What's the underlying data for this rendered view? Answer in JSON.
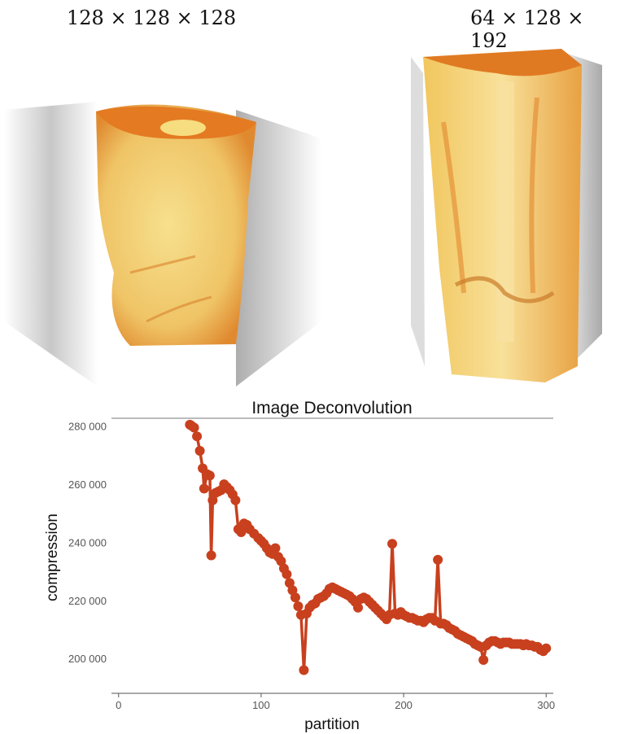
{
  "volumes": [
    {
      "dims": "128 × 128 × 128"
    },
    {
      "dims": "64 × 128 × 192"
    }
  ],
  "colors": {
    "series": "#c8401e",
    "volume_light": "#f5d77a",
    "volume_dark": "#e07018"
  },
  "chart_data": {
    "type": "scatter",
    "title": "Image Deconvolution",
    "xlabel": "partition",
    "ylabel": "compression",
    "xlim": [
      -5,
      305
    ],
    "ylim": [
      188000,
      283000
    ],
    "xticks": [
      0,
      100,
      200,
      300
    ],
    "yticks": [
      200000,
      220000,
      240000,
      260000,
      280000
    ],
    "ytick_labels": [
      "200 000",
      "220 000",
      "240 000",
      "260 000",
      "280 000"
    ],
    "grid": false,
    "series": [
      {
        "connected": true,
        "x": [
          50,
          51,
          53,
          55,
          57,
          59,
          60,
          62,
          64,
          65,
          66,
          68,
          70,
          72,
          74,
          76,
          78,
          80,
          82,
          84,
          86,
          88,
          90,
          92,
          95,
          98,
          100,
          102,
          104,
          106,
          108,
          110,
          112,
          114,
          116,
          118,
          120,
          122,
          124,
          126,
          128,
          130,
          132,
          134,
          136,
          138,
          140,
          142,
          144,
          146,
          148,
          150,
          152,
          154,
          156,
          158,
          160,
          162,
          164,
          166,
          168,
          170,
          172,
          174,
          176,
          178,
          180,
          182,
          184,
          186,
          188,
          190,
          192,
          194,
          196,
          198,
          200,
          202,
          204,
          206,
          208,
          210,
          212,
          214,
          216,
          218,
          220,
          222,
          224,
          226,
          228,
          230,
          232,
          234,
          236,
          238,
          240,
          242,
          244,
          246,
          248,
          250,
          252,
          254,
          256,
          258,
          260,
          262,
          264,
          266,
          268,
          270,
          272,
          274,
          276,
          278,
          280,
          282,
          284,
          286,
          288,
          290,
          292,
          294,
          296,
          298,
          300
        ],
        "y": [
          280500,
          280200,
          279500,
          276500,
          271500,
          265500,
          258500,
          263500,
          263000,
          235500,
          254500,
          257000,
          257500,
          258000,
          260000,
          259000,
          258000,
          256500,
          254500,
          244500,
          243500,
          246500,
          246000,
          244500,
          243000,
          241500,
          240500,
          239500,
          238000,
          236500,
          236000,
          238000,
          235000,
          233500,
          231000,
          229000,
          226000,
          223500,
          221000,
          218000,
          215000,
          196000,
          215500,
          217500,
          218500,
          219000,
          220500,
          221000,
          221500,
          222500,
          224000,
          224500,
          224000,
          223500,
          223000,
          222500,
          222000,
          221500,
          220500,
          219500,
          217500,
          220500,
          221000,
          220500,
          219500,
          218500,
          217500,
          216500,
          215500,
          214500,
          213500,
          215000,
          239500,
          215500,
          215000,
          216000,
          215000,
          214500,
          214000,
          214000,
          213500,
          213000,
          213000,
          212500,
          213500,
          214000,
          214000,
          213000,
          234000,
          212000,
          212000,
          211500,
          210500,
          210000,
          209500,
          208500,
          208000,
          207500,
          207000,
          206500,
          206000,
          205000,
          204500,
          204000,
          199500,
          204500,
          205500,
          206000,
          206000,
          205500,
          205000,
          205500,
          205500,
          205500,
          205000,
          205000,
          205000,
          205000,
          204500,
          205000,
          204500,
          204500,
          204000,
          204000,
          203000,
          202500,
          203500
        ]
      }
    ]
  }
}
